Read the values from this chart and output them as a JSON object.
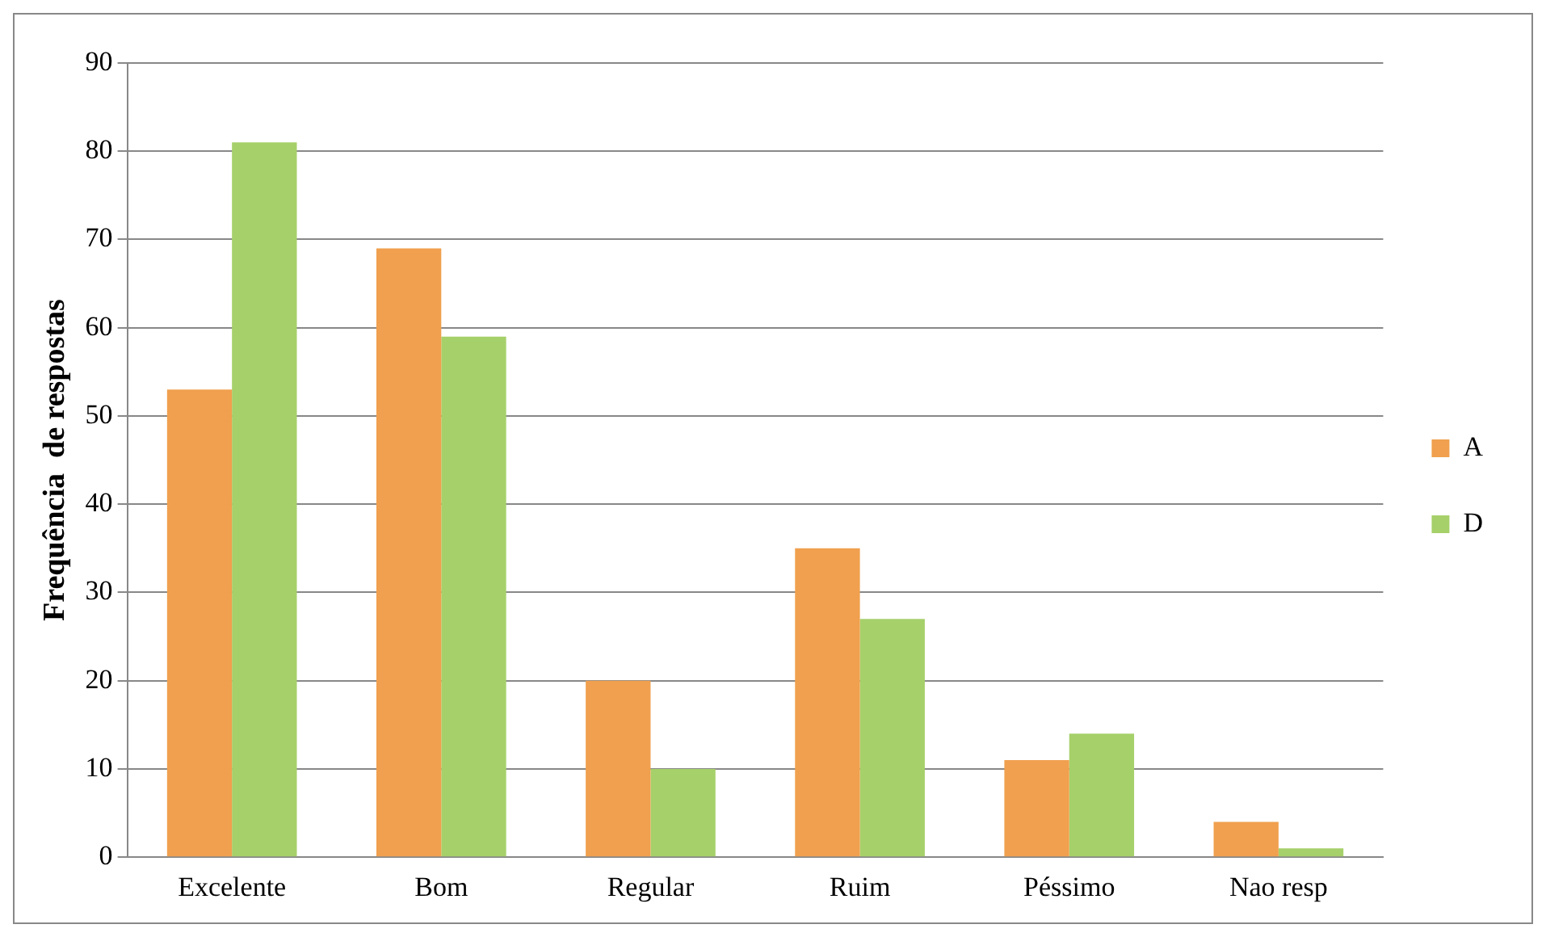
{
  "chart_data": {
    "type": "bar",
    "ylabel": "Frequência  de respostas",
    "categories": [
      "Excelente",
      "Bom",
      "Regular",
      "Ruim",
      "Péssimo",
      "Nao resp"
    ],
    "series": [
      {
        "name": "A",
        "color": "#f0a04e",
        "values": [
          53,
          69,
          20,
          35,
          11,
          4
        ]
      },
      {
        "name": "D",
        "color": "#a6d06a",
        "values": [
          81,
          59,
          10,
          27,
          14,
          1
        ]
      }
    ],
    "ylim": [
      0,
      90
    ],
    "yticks": [
      0,
      10,
      20,
      30,
      40,
      50,
      60,
      70,
      80,
      90
    ],
    "grid": "y",
    "legend": "right"
  }
}
